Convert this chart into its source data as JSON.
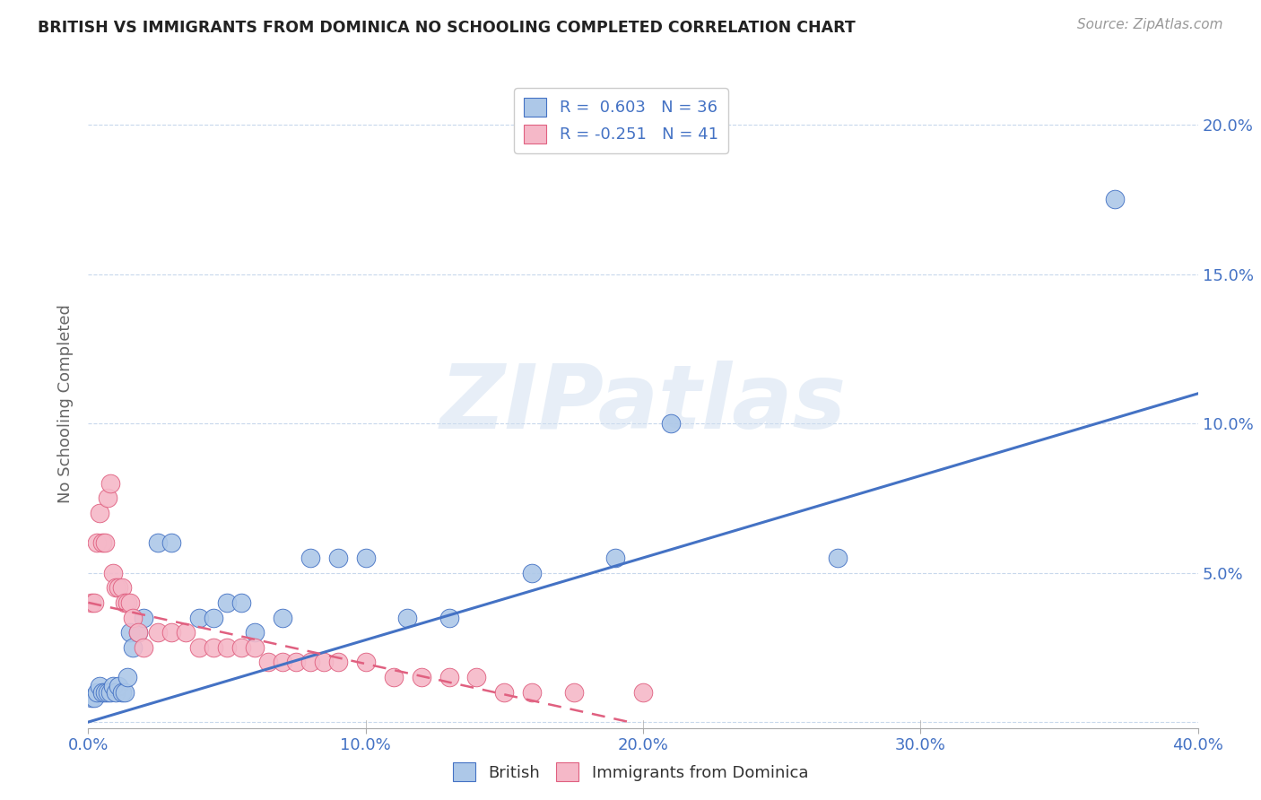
{
  "title": "BRITISH VS IMMIGRANTS FROM DOMINICA NO SCHOOLING COMPLETED CORRELATION CHART",
  "source": "Source: ZipAtlas.com",
  "ylabel": "No Schooling Completed",
  "watermark": "ZIPatlas",
  "xlim": [
    0.0,
    0.4
  ],
  "ylim": [
    -0.002,
    0.215
  ],
  "xticks": [
    0.0,
    0.1,
    0.2,
    0.3,
    0.4
  ],
  "yticks": [
    0.0,
    0.05,
    0.1,
    0.15,
    0.2
  ],
  "xtick_labels": [
    "0.0%",
    "10.0%",
    "20.0%",
    "30.0%",
    "40.0%"
  ],
  "ytick_labels_right": [
    "",
    "5.0%",
    "10.0%",
    "15.0%",
    "20.0%"
  ],
  "british_R": 0.603,
  "british_N": 36,
  "dominica_R": -0.251,
  "dominica_N": 41,
  "british_color": "#adc8e8",
  "dominica_color": "#f5b8c8",
  "british_line_color": "#4472C4",
  "dominica_line_color": "#E06080",
  "background_color": "#ffffff",
  "grid_color": "#c8d8ec",
  "british_x": [
    0.001,
    0.002,
    0.003,
    0.004,
    0.005,
    0.006,
    0.007,
    0.008,
    0.009,
    0.01,
    0.011,
    0.012,
    0.013,
    0.014,
    0.015,
    0.016,
    0.018,
    0.02,
    0.025,
    0.03,
    0.04,
    0.045,
    0.05,
    0.055,
    0.06,
    0.07,
    0.08,
    0.09,
    0.1,
    0.115,
    0.13,
    0.16,
    0.19,
    0.21,
    0.27,
    0.37
  ],
  "british_y": [
    0.008,
    0.008,
    0.01,
    0.012,
    0.01,
    0.01,
    0.01,
    0.01,
    0.012,
    0.01,
    0.012,
    0.01,
    0.01,
    0.015,
    0.03,
    0.025,
    0.03,
    0.035,
    0.06,
    0.06,
    0.035,
    0.035,
    0.04,
    0.04,
    0.03,
    0.035,
    0.055,
    0.055,
    0.055,
    0.035,
    0.035,
    0.05,
    0.055,
    0.1,
    0.055,
    0.175
  ],
  "dominica_x": [
    0.001,
    0.002,
    0.003,
    0.004,
    0.005,
    0.006,
    0.007,
    0.008,
    0.009,
    0.01,
    0.011,
    0.012,
    0.013,
    0.014,
    0.015,
    0.016,
    0.018,
    0.02,
    0.025,
    0.03,
    0.035,
    0.04,
    0.045,
    0.05,
    0.055,
    0.06,
    0.065,
    0.07,
    0.075,
    0.08,
    0.085,
    0.09,
    0.1,
    0.11,
    0.12,
    0.13,
    0.14,
    0.15,
    0.16,
    0.175,
    0.2
  ],
  "dominica_y": [
    0.04,
    0.04,
    0.06,
    0.07,
    0.06,
    0.06,
    0.075,
    0.08,
    0.05,
    0.045,
    0.045,
    0.045,
    0.04,
    0.04,
    0.04,
    0.035,
    0.03,
    0.025,
    0.03,
    0.03,
    0.03,
    0.025,
    0.025,
    0.025,
    0.025,
    0.025,
    0.02,
    0.02,
    0.02,
    0.02,
    0.02,
    0.02,
    0.02,
    0.015,
    0.015,
    0.015,
    0.015,
    0.01,
    0.01,
    0.01,
    0.01
  ],
  "british_line_x0": 0.0,
  "british_line_x1": 0.4,
  "british_line_y0": 0.0,
  "british_line_y1": 0.11,
  "dominica_line_x0": 0.0,
  "dominica_line_x1": 0.195,
  "dominica_line_y0": 0.04,
  "dominica_line_y1": 0.0
}
